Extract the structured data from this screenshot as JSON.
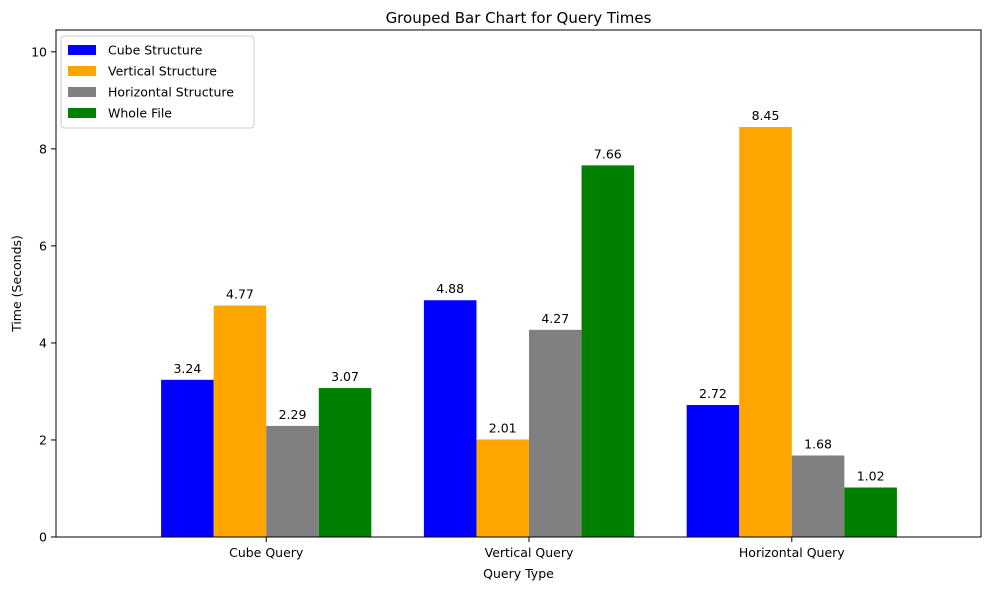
{
  "chart_data": {
    "type": "bar",
    "title": "Grouped Bar Chart for Query Times",
    "xlabel": "Query Type",
    "ylabel": "Time (Seconds)",
    "categories": [
      "Cube Query",
      "Vertical Query",
      "Horizontal Query"
    ],
    "series": [
      {
        "name": "Cube Structure",
        "color": "#0000ff",
        "values": [
          3.24,
          4.88,
          2.72
        ]
      },
      {
        "name": "Vertical Structure",
        "color": "#ffa500",
        "values": [
          4.77,
          2.01,
          8.45
        ]
      },
      {
        "name": "Horizontal Structure",
        "color": "#808080",
        "values": [
          2.29,
          4.27,
          1.68
        ]
      },
      {
        "name": "Whole File",
        "color": "#008000",
        "values": [
          3.07,
          7.66,
          1.02
        ]
      }
    ],
    "ylim": [
      0,
      10.45
    ],
    "yticks": [
      0,
      2,
      4,
      6,
      8,
      10
    ],
    "grid": false,
    "legend_position": "top-left"
  }
}
